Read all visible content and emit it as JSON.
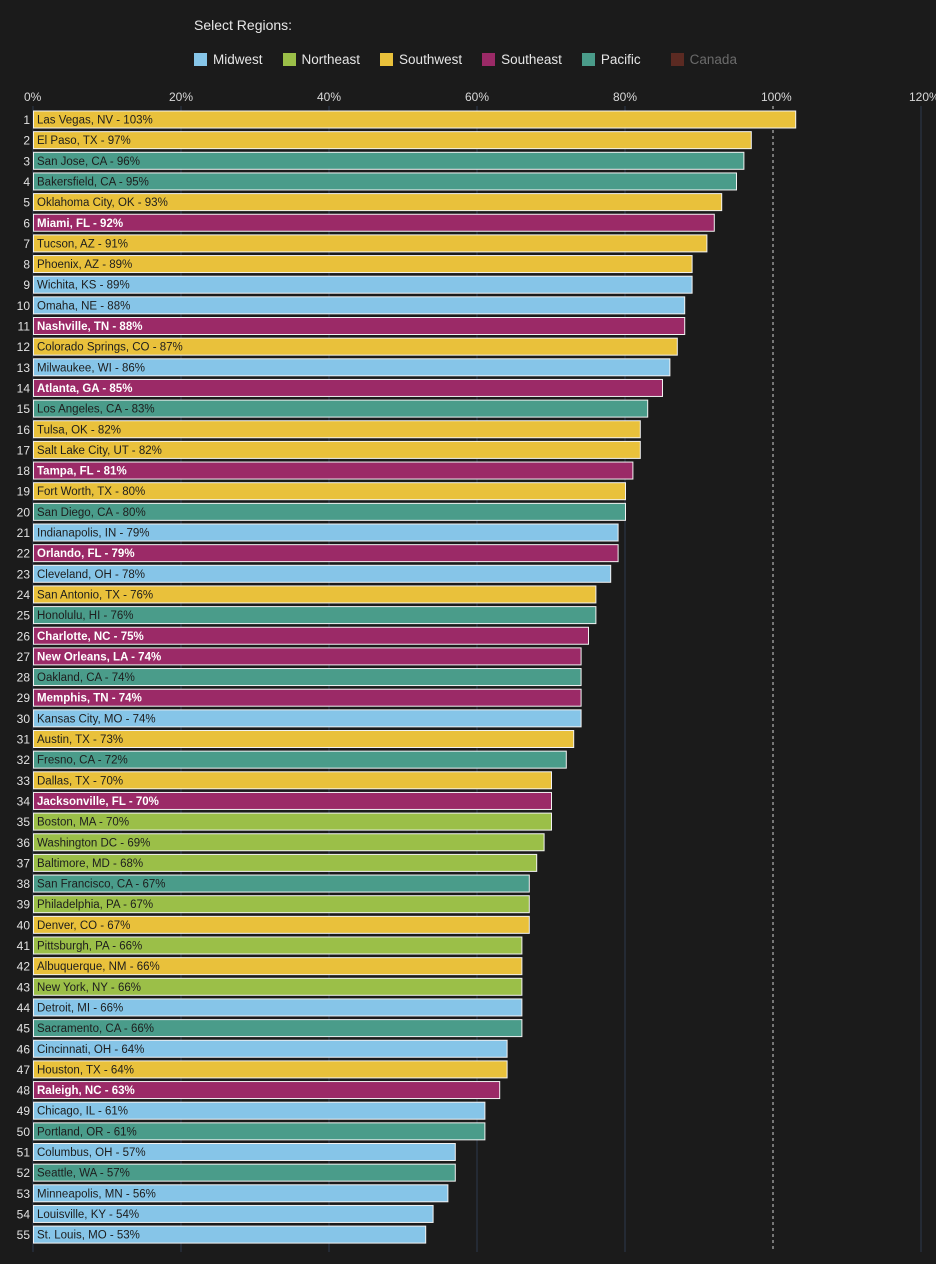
{
  "legend": {
    "title": "Select Regions:",
    "items": [
      {
        "name": "Midwest",
        "color": "#86c5e8",
        "active": true
      },
      {
        "name": "Northeast",
        "color": "#9bbf48",
        "active": true
      },
      {
        "name": "Southwest",
        "color": "#e9c13b",
        "active": true
      },
      {
        "name": "Southeast",
        "color": "#9b2a67",
        "active": true
      },
      {
        "name": "Pacific",
        "color": "#4a9c8a",
        "active": true
      },
      {
        "name": "Canada",
        "color": "#5b2a22",
        "active": false
      }
    ]
  },
  "chart_data": {
    "type": "bar",
    "orientation": "horizontal",
    "xlim": [
      0,
      120
    ],
    "x_ticks": [
      "0%",
      "20%",
      "40%",
      "60%",
      "80%",
      "100%",
      "120%"
    ],
    "x_tick_values": [
      0,
      20,
      40,
      60,
      80,
      100,
      120
    ],
    "reference_line": 100,
    "grid": true,
    "legend_position": "top",
    "bars": [
      {
        "rank": 1,
        "label": "Las Vegas, NV - 103%",
        "value": 103,
        "region": "Southwest"
      },
      {
        "rank": 2,
        "label": "El Paso, TX - 97%",
        "value": 97,
        "region": "Southwest"
      },
      {
        "rank": 3,
        "label": "San Jose, CA - 96%",
        "value": 96,
        "region": "Pacific"
      },
      {
        "rank": 4,
        "label": "Bakersfield, CA - 95%",
        "value": 95,
        "region": "Pacific"
      },
      {
        "rank": 5,
        "label": "Oklahoma City, OK - 93%",
        "value": 93,
        "region": "Southwest"
      },
      {
        "rank": 6,
        "label": "Miami, FL - 92%",
        "value": 92,
        "region": "Southeast"
      },
      {
        "rank": 7,
        "label": "Tucson, AZ - 91%",
        "value": 91,
        "region": "Southwest"
      },
      {
        "rank": 8,
        "label": "Phoenix, AZ - 89%",
        "value": 89,
        "region": "Southwest"
      },
      {
        "rank": 9,
        "label": "Wichita, KS - 89%",
        "value": 89,
        "region": "Midwest"
      },
      {
        "rank": 10,
        "label": "Omaha, NE - 88%",
        "value": 88,
        "region": "Midwest"
      },
      {
        "rank": 11,
        "label": "Nashville, TN - 88%",
        "value": 88,
        "region": "Southeast"
      },
      {
        "rank": 12,
        "label": "Colorado Springs, CO - 87%",
        "value": 87,
        "region": "Southwest"
      },
      {
        "rank": 13,
        "label": "Milwaukee, WI - 86%",
        "value": 86,
        "region": "Midwest"
      },
      {
        "rank": 14,
        "label": "Atlanta, GA - 85%",
        "value": 85,
        "region": "Southeast"
      },
      {
        "rank": 15,
        "label": "Los Angeles, CA - 83%",
        "value": 83,
        "region": "Pacific"
      },
      {
        "rank": 16,
        "label": "Tulsa, OK - 82%",
        "value": 82,
        "region": "Southwest"
      },
      {
        "rank": 17,
        "label": "Salt Lake City, UT - 82%",
        "value": 82,
        "region": "Southwest"
      },
      {
        "rank": 18,
        "label": "Tampa, FL - 81%",
        "value": 81,
        "region": "Southeast"
      },
      {
        "rank": 19,
        "label": "Fort Worth, TX - 80%",
        "value": 80,
        "region": "Southwest"
      },
      {
        "rank": 20,
        "label": "San Diego, CA - 80%",
        "value": 80,
        "region": "Pacific"
      },
      {
        "rank": 21,
        "label": "Indianapolis, IN - 79%",
        "value": 79,
        "region": "Midwest"
      },
      {
        "rank": 22,
        "label": "Orlando, FL - 79%",
        "value": 79,
        "region": "Southeast"
      },
      {
        "rank": 23,
        "label": "Cleveland, OH - 78%",
        "value": 78,
        "region": "Midwest"
      },
      {
        "rank": 24,
        "label": "San Antonio, TX - 76%",
        "value": 76,
        "region": "Southwest"
      },
      {
        "rank": 25,
        "label": "Honolulu, HI - 76%",
        "value": 76,
        "region": "Pacific"
      },
      {
        "rank": 26,
        "label": "Charlotte, NC - 75%",
        "value": 75,
        "region": "Southeast"
      },
      {
        "rank": 27,
        "label": "New Orleans, LA - 74%",
        "value": 74,
        "region": "Southeast"
      },
      {
        "rank": 28,
        "label": "Oakland, CA - 74%",
        "value": 74,
        "region": "Pacific"
      },
      {
        "rank": 29,
        "label": "Memphis, TN - 74%",
        "value": 74,
        "region": "Southeast"
      },
      {
        "rank": 30,
        "label": "Kansas City, MO - 74%",
        "value": 74,
        "region": "Midwest"
      },
      {
        "rank": 31,
        "label": "Austin, TX - 73%",
        "value": 73,
        "region": "Southwest"
      },
      {
        "rank": 32,
        "label": "Fresno, CA - 72%",
        "value": 72,
        "region": "Pacific"
      },
      {
        "rank": 33,
        "label": "Dallas, TX - 70%",
        "value": 70,
        "region": "Southwest"
      },
      {
        "rank": 34,
        "label": "Jacksonville, FL - 70%",
        "value": 70,
        "region": "Southeast"
      },
      {
        "rank": 35,
        "label": "Boston, MA - 70%",
        "value": 70,
        "region": "Northeast"
      },
      {
        "rank": 36,
        "label": "Washington DC - 69%",
        "value": 69,
        "region": "Northeast"
      },
      {
        "rank": 37,
        "label": "Baltimore, MD - 68%",
        "value": 68,
        "region": "Northeast"
      },
      {
        "rank": 38,
        "label": "San Francisco, CA - 67%",
        "value": 67,
        "region": "Pacific"
      },
      {
        "rank": 39,
        "label": "Philadelphia, PA - 67%",
        "value": 67,
        "region": "Northeast"
      },
      {
        "rank": 40,
        "label": "Denver, CO - 67%",
        "value": 67,
        "region": "Southwest"
      },
      {
        "rank": 41,
        "label": "Pittsburgh, PA - 66%",
        "value": 66,
        "region": "Northeast"
      },
      {
        "rank": 42,
        "label": "Albuquerque, NM - 66%",
        "value": 66,
        "region": "Southwest"
      },
      {
        "rank": 43,
        "label": "New York, NY - 66%",
        "value": 66,
        "region": "Northeast"
      },
      {
        "rank": 44,
        "label": "Detroit, MI - 66%",
        "value": 66,
        "region": "Midwest"
      },
      {
        "rank": 45,
        "label": "Sacramento, CA - 66%",
        "value": 66,
        "region": "Pacific"
      },
      {
        "rank": 46,
        "label": "Cincinnati, OH - 64%",
        "value": 64,
        "region": "Midwest"
      },
      {
        "rank": 47,
        "label": "Houston, TX - 64%",
        "value": 64,
        "region": "Southwest"
      },
      {
        "rank": 48,
        "label": "Raleigh, NC - 63%",
        "value": 63,
        "region": "Southeast"
      },
      {
        "rank": 49,
        "label": "Chicago, IL - 61%",
        "value": 61,
        "region": "Midwest"
      },
      {
        "rank": 50,
        "label": "Portland, OR - 61%",
        "value": 61,
        "region": "Pacific"
      },
      {
        "rank": 51,
        "label": "Columbus, OH - 57%",
        "value": 57,
        "region": "Midwest"
      },
      {
        "rank": 52,
        "label": "Seattle, WA - 57%",
        "value": 57,
        "region": "Pacific"
      },
      {
        "rank": 53,
        "label": "Minneapolis, MN - 56%",
        "value": 56,
        "region": "Midwest"
      },
      {
        "rank": 54,
        "label": "Louisville, KY - 54%",
        "value": 54,
        "region": "Midwest"
      },
      {
        "rank": 55,
        "label": "St. Louis, MO - 53%",
        "value": 53,
        "region": "Midwest"
      }
    ]
  }
}
